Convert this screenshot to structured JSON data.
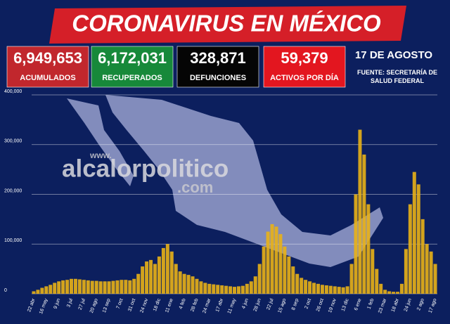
{
  "chart_data": {
    "type": "bar",
    "title": "CORONAVIRUS EN MÉXICO",
    "stats": [
      {
        "value": "6,949,653",
        "label": "ACUMULADOS",
        "color": "#c1272d"
      },
      {
        "value": "6,172,031",
        "label": "RECUPERADOS",
        "color": "#17893a"
      },
      {
        "value": "328,871",
        "label": "DEFUNCIONES",
        "color": "#050505"
      },
      {
        "value": "59,379",
        "label": "ACTIVOS POR DÍA",
        "color": "#e3161f"
      }
    ],
    "date": "17 DE AGOSTO",
    "source": "FUENTE: SECRETARÍA DE SALUD FEDERAL",
    "watermark": [
      "www.",
      "alcalorpolitico",
      ".com"
    ],
    "color": "#e9b116",
    "grid": true,
    "ylim": [
      0,
      400000
    ],
    "yticks": [
      0,
      {
        "value": 100000,
        "label": "100,000"
      },
      {
        "value": 200000,
        "label": "200,000"
      },
      {
        "value": 300000,
        "label": "300,000"
      },
      {
        "value": 400000,
        "label": "400,000"
      }
    ],
    "categories": [
      "22 abr",
      null,
      null,
      "16 may",
      null,
      null,
      "9 jun",
      null,
      null,
      "3 jul",
      null,
      null,
      "27 jul",
      null,
      null,
      "20 ago",
      null,
      null,
      "13 sep",
      null,
      null,
      "7 oct",
      null,
      null,
      "31 oct",
      null,
      null,
      "24 nov",
      null,
      null,
      "18 dic",
      null,
      null,
      "11 ene",
      null,
      null,
      "4 feb",
      null,
      null,
      "28 feb",
      null,
      null,
      "24 mar",
      null,
      null,
      "17 abr",
      null,
      null,
      "11 may",
      null,
      null,
      "4 jun",
      null,
      null,
      "28 jun",
      null,
      null,
      "22 jul",
      null,
      null,
      "15 ago",
      null,
      null,
      "8 sep",
      null,
      null,
      "2 oct",
      null,
      null,
      "26 oct",
      null,
      null,
      "19 nov",
      null,
      null,
      "13 dic",
      null,
      null,
      "6 ene",
      null,
      null,
      "1 feb",
      null,
      null,
      "23 mar",
      null,
      null,
      "18 abr",
      null,
      null,
      "24 jun",
      null,
      null,
      "2 ago",
      null,
      null,
      "17 ago"
    ],
    "values": [
      5000,
      8000,
      12000,
      15000,
      18000,
      22000,
      25000,
      27000,
      28000,
      30000,
      30000,
      29000,
      28000,
      27000,
      26000,
      26000,
      25000,
      25000,
      25000,
      26000,
      27000,
      28000,
      28000,
      27000,
      30000,
      40000,
      55000,
      65000,
      68000,
      60000,
      75000,
      92000,
      100000,
      85000,
      60000,
      45000,
      40000,
      38000,
      35000,
      30000,
      25000,
      22000,
      20000,
      19000,
      18000,
      17000,
      16000,
      15000,
      14000,
      15000,
      16000,
      20000,
      25000,
      35000,
      60000,
      95000,
      125000,
      140000,
      135000,
      120000,
      95000,
      75000,
      55000,
      40000,
      32000,
      28000,
      25000,
      22000,
      20000,
      18000,
      17000,
      16000,
      15000,
      14000,
      13000,
      15000,
      60000,
      200000,
      330000,
      280000,
      180000,
      90000,
      50000,
      20000,
      8000,
      5000,
      4000,
      4000,
      20000,
      90000,
      180000,
      245000,
      220000,
      150000,
      100000,
      85000,
      60000
    ]
  }
}
